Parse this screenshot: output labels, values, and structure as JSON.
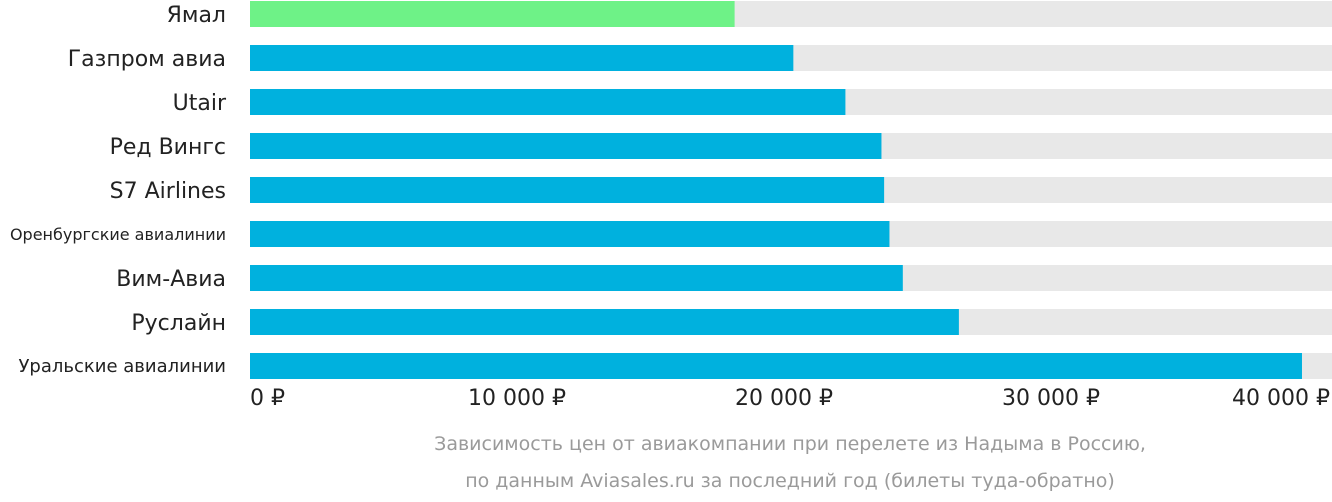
{
  "chart_data": {
    "type": "bar",
    "orientation": "horizontal",
    "categories": [
      "Ямал",
      "Газпром авиа",
      "Utair",
      "Ред Вингс",
      "S7 Airlines",
      "Оренбургские авиалинии",
      "Вим-Авиа",
      "Руслайн",
      "Уральские авиалинии"
    ],
    "values": [
      18150,
      20350,
      22300,
      23650,
      23750,
      23950,
      24450,
      26550,
      39400
    ],
    "highlight_index": 0,
    "colors": {
      "highlight": "#6ef287",
      "bar": "#00b1de",
      "track": "#e8e8e8",
      "text": "#222222",
      "caption": "#9a9a9a"
    },
    "xlim": [
      0,
      40000
    ],
    "x_ticks": [
      0,
      10000,
      20000,
      30000,
      40000
    ],
    "x_tick_labels": [
      "0 ₽",
      "10 000 ₽",
      "20 000 ₽",
      "30 000 ₽",
      "40 000 ₽"
    ],
    "caption_lines": [
      "Зависимость цен от авиакомпании при перелете из Надыма в Россию,",
      "по данным Aviasales.ru за последний год (билеты туда-обратно)"
    ]
  }
}
